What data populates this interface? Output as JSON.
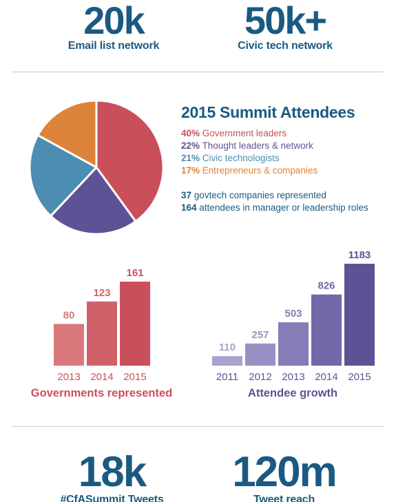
{
  "top_stats": [
    {
      "value": "20k",
      "label": "Email list network"
    },
    {
      "value": "50k+",
      "label": "Civic tech network"
    }
  ],
  "bottom_stats": [
    {
      "value": "18k",
      "label": "#CfASummit Tweets"
    },
    {
      "value": "120m",
      "label": "Tweet reach"
    }
  ],
  "summit": {
    "title": "2015 Summit Attendees",
    "legend": [
      {
        "pct": "40%",
        "text": "Government leaders",
        "color": "#c9505a"
      },
      {
        "pct": "22%",
        "text": "Thought leaders & network",
        "color": "#5e5297"
      },
      {
        "pct": "21%",
        "text": "Civic technologists",
        "color": "#4b8db3"
      },
      {
        "pct": "17%",
        "text": "Entrepreneurs & companies",
        "color": "#de833a"
      }
    ],
    "notes": [
      {
        "num": "37",
        "text": "govtech companies represented"
      },
      {
        "num": "164",
        "text": "attendees in manager or leadership roles"
      }
    ]
  },
  "chart_data": [
    {
      "type": "pie",
      "title": "2015 Summit Attendees",
      "labels": [
        "Government leaders",
        "Thought leaders & network",
        "Civic technologists",
        "Entrepreneurs & companies"
      ],
      "values": [
        40,
        22,
        21,
        17
      ],
      "colors": [
        "#c9505a",
        "#5e5297",
        "#4b8db3",
        "#de833a"
      ]
    },
    {
      "type": "bar",
      "title": "Governments represented",
      "categories": [
        "2013",
        "2014",
        "2015"
      ],
      "values": [
        80,
        123,
        161
      ],
      "colors": [
        "#d9787c",
        "#d0616a",
        "#c9505a"
      ],
      "label_color": "#c9505a",
      "ylim": [
        0,
        161
      ]
    },
    {
      "type": "bar",
      "title": "Attendee growth",
      "categories": [
        "2011",
        "2012",
        "2013",
        "2014",
        "2015"
      ],
      "values": [
        110,
        257,
        503,
        826,
        1183
      ],
      "colors": [
        "#a9a2cd",
        "#9890c5",
        "#857cb8",
        "#7268a9",
        "#5e5297"
      ],
      "label_color": "#5e5297",
      "ylim": [
        0,
        1183
      ]
    }
  ]
}
